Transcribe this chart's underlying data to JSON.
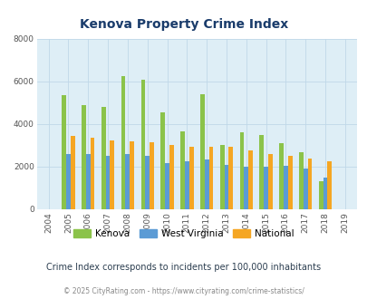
{
  "title": "Kenova Property Crime Index",
  "years": [
    2004,
    2005,
    2006,
    2007,
    2008,
    2009,
    2010,
    2011,
    2012,
    2013,
    2014,
    2015,
    2016,
    2017,
    2018,
    2019
  ],
  "kenova": [
    0,
    5350,
    4900,
    4800,
    6250,
    6100,
    4550,
    3650,
    5400,
    3000,
    3600,
    3500,
    3100,
    2700,
    1300,
    0
  ],
  "west_virginia": [
    0,
    2600,
    2600,
    2500,
    2600,
    2500,
    2150,
    2250,
    2350,
    2100,
    2000,
    2000,
    2050,
    1900,
    1500,
    0
  ],
  "national": [
    0,
    3450,
    3350,
    3250,
    3200,
    3150,
    3000,
    2950,
    2950,
    2950,
    2750,
    2600,
    2500,
    2400,
    2250,
    0
  ],
  "kenova_color": "#8bc34a",
  "wv_color": "#5b9bd5",
  "national_color": "#f5a623",
  "bg_color": "#deeef6",
  "ylim": [
    0,
    8000
  ],
  "yticks": [
    0,
    2000,
    4000,
    6000,
    8000
  ],
  "title_color": "#1a3c6b",
  "subtitle": "Crime Index corresponds to incidents per 100,000 inhabitants",
  "footer": "© 2025 CityRating.com - https://www.cityrating.com/crime-statistics/",
  "bar_width": 0.22,
  "grid_color": "#c0d8e8"
}
